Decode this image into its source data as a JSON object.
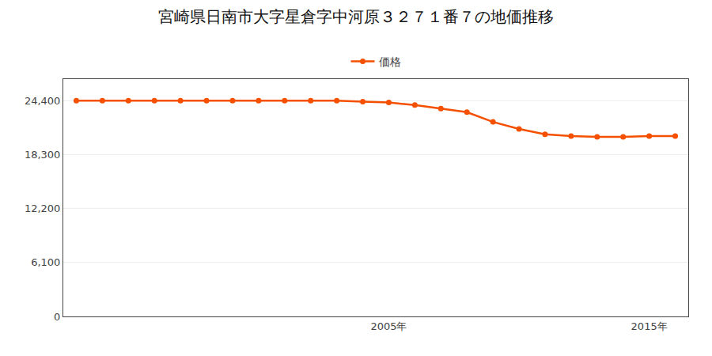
{
  "chart_data": {
    "type": "line",
    "title": "宮崎県日南市大字星倉字中河原３２７１番７の地価推移",
    "x": [
      1993,
      1994,
      1995,
      1996,
      1997,
      1998,
      1999,
      2000,
      2001,
      2002,
      2003,
      2004,
      2005,
      2006,
      2007,
      2008,
      2009,
      2010,
      2011,
      2012,
      2013,
      2014,
      2015,
      2016
    ],
    "series": [
      {
        "name": "価格",
        "color": "#f55000",
        "marker": "circle",
        "values": [
          24400,
          24400,
          24400,
          24400,
          24400,
          24400,
          24400,
          24400,
          24400,
          24400,
          24400,
          24300,
          24200,
          23900,
          23500,
          23100,
          22000,
          21200,
          20600,
          20400,
          20300,
          20300,
          20400,
          20400
        ]
      }
    ],
    "xlim": [
      1992.5,
      2016.5
    ],
    "xticks": [
      {
        "value": 2005,
        "label": "2005年"
      },
      {
        "value": 2015,
        "label": "2015年"
      }
    ],
    "ylim": [
      0,
      26840
    ],
    "yticks": [
      0,
      {
        "value": 6100,
        "label": "6,100"
      },
      {
        "value": 12200,
        "label": "12,200"
      },
      {
        "value": 18300,
        "label": "18,300"
      },
      {
        "value": 24400,
        "label": "24,400"
      }
    ],
    "grid": "y",
    "legend": "top"
  }
}
